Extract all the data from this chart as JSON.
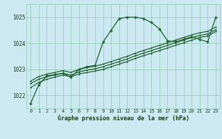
{
  "title": "Graphe pression niveau de la mer (hPa)",
  "background_color": "#cce8f0",
  "plot_bg_color": "#cce8f0",
  "grid_color": "#99ccbb",
  "line_color": "#1a5c2a",
  "xlim": [
    -0.5,
    23.5
  ],
  "ylim": [
    1021.5,
    1025.5
  ],
  "yticks": [
    1022,
    1023,
    1024,
    1025
  ],
  "xticks": [
    0,
    1,
    2,
    3,
    4,
    5,
    6,
    7,
    8,
    9,
    10,
    11,
    12,
    13,
    14,
    15,
    16,
    17,
    18,
    19,
    20,
    21,
    22,
    23
  ],
  "series1": [
    1021.7,
    1022.4,
    1022.75,
    1022.8,
    1022.85,
    1022.7,
    1023.0,
    1023.1,
    1023.15,
    1024.05,
    1024.5,
    1024.95,
    1025.0,
    1025.0,
    1024.95,
    1024.8,
    1024.55,
    1024.1,
    1024.05,
    1024.15,
    1024.25,
    1024.15,
    1024.05,
    1025.0
  ],
  "series2": [
    1022.3,
    1022.5,
    1022.62,
    1022.7,
    1022.78,
    1022.72,
    1022.82,
    1022.88,
    1022.93,
    1023.0,
    1023.1,
    1023.2,
    1023.3,
    1023.42,
    1023.52,
    1023.62,
    1023.72,
    1023.82,
    1023.92,
    1024.02,
    1024.12,
    1024.22,
    1024.28,
    1024.45
  ],
  "series3": [
    1022.45,
    1022.62,
    1022.72,
    1022.78,
    1022.85,
    1022.78,
    1022.9,
    1022.97,
    1023.02,
    1023.1,
    1023.2,
    1023.3,
    1023.4,
    1023.52,
    1023.62,
    1023.72,
    1023.82,
    1023.92,
    1024.02,
    1024.12,
    1024.22,
    1024.3,
    1024.36,
    1024.52
  ],
  "series4": [
    1022.55,
    1022.72,
    1022.82,
    1022.88,
    1022.95,
    1022.88,
    1023.0,
    1023.07,
    1023.12,
    1023.2,
    1023.3,
    1023.4,
    1023.5,
    1023.62,
    1023.72,
    1023.82,
    1023.92,
    1024.02,
    1024.12,
    1024.22,
    1024.32,
    1024.4,
    1024.46,
    1024.62
  ]
}
